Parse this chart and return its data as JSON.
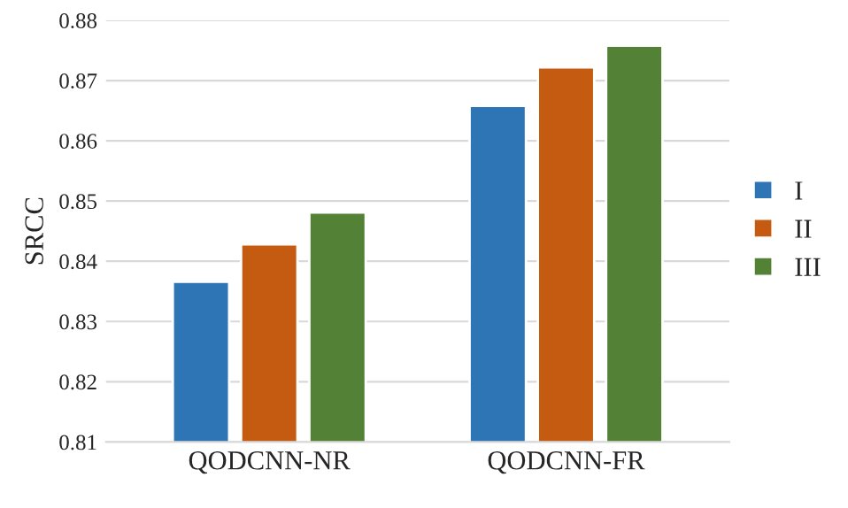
{
  "chart_data": {
    "type": "bar",
    "ylabel": "SRCC",
    "categories": [
      "QODCNN-NR",
      "QODCNN-FR"
    ],
    "series": [
      {
        "name": "I",
        "color": "#2e75b6",
        "values": [
          0.8366,
          0.8658
        ]
      },
      {
        "name": "II",
        "color": "#c55a11",
        "values": [
          0.8428,
          0.8722
        ]
      },
      {
        "name": "III",
        "color": "#538135",
        "values": [
          0.8481,
          0.8758
        ]
      }
    ],
    "ylim": [
      0.81,
      0.88
    ],
    "yticks": [
      0.81,
      0.82,
      0.83,
      0.84,
      0.85,
      0.86,
      0.87,
      0.88
    ],
    "grid": "y",
    "legend": "right"
  }
}
